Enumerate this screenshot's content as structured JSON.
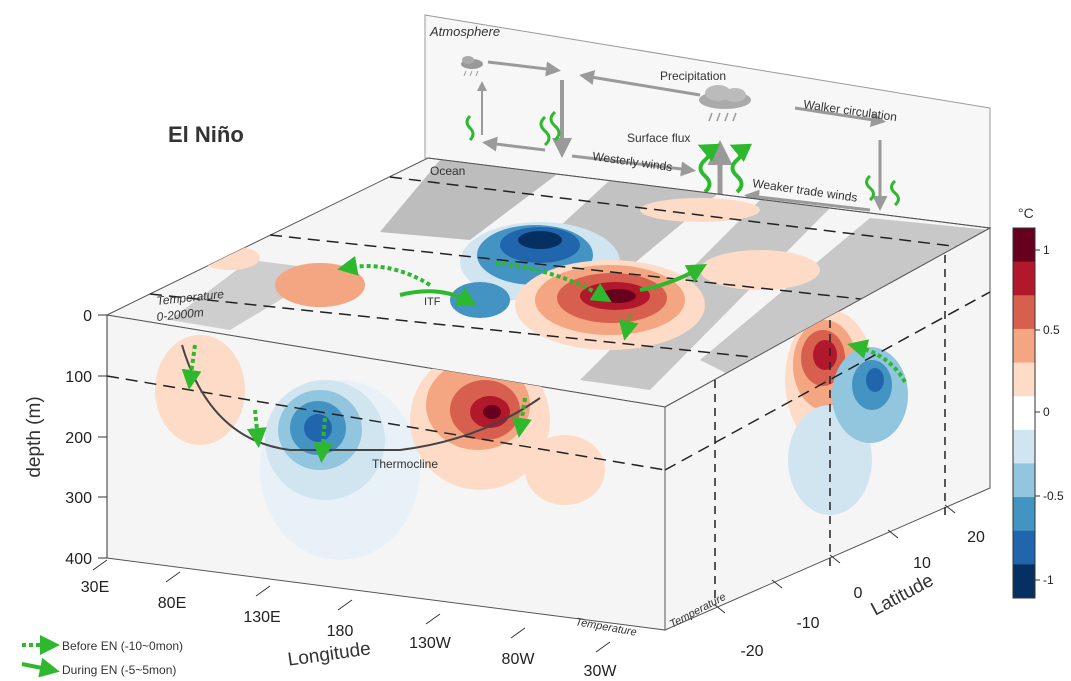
{
  "title": "El Niño",
  "panels": {
    "atmosphere": "Atmosphere",
    "ocean": "Ocean",
    "temperature_top": "Temperature",
    "temperature_top_range": "0-2000m",
    "temperature_front": "Temperature",
    "temperature_side": "Temperature"
  },
  "atmosphere_labels": {
    "precipitation": "Precipitation",
    "walker": "Walker circulation",
    "surface_flux": "Surface flux",
    "westerly": "Westerly winds",
    "weaker_trade": "Weaker trade winds"
  },
  "ocean_labels": {
    "itf": "ITF",
    "thermocline": "Thermocline"
  },
  "axes": {
    "depth_label": "depth (m)",
    "depth_ticks": [
      "0",
      "100",
      "200",
      "300",
      "400"
    ],
    "longitude_label": "Longitude",
    "longitude_ticks": [
      "30E",
      "80E",
      "130E",
      "180",
      "130W",
      "80W",
      "30W"
    ],
    "latitude_label": "Latitude",
    "latitude_ticks": [
      "-20",
      "-10",
      "0",
      "10",
      "20"
    ]
  },
  "colorbar": {
    "unit": "°C",
    "ticks": [
      "1",
      "0.5",
      "0",
      "-0.5",
      "-1"
    ],
    "colors": [
      "#67001f",
      "#b2182b",
      "#d6604d",
      "#f4a582",
      "#fddbc7",
      "#ffffff",
      "#d1e5f0",
      "#92c5de",
      "#4393c3",
      "#2166ac",
      "#053061"
    ]
  },
  "legend": {
    "before": "Before EN (-10~0mon)",
    "during": "During EN (-5~5mon)"
  },
  "colors": {
    "arrow_green": "#2eb82e",
    "gray_band": "#bdbdbd",
    "arrow_gray": "#9a9a9a"
  }
}
